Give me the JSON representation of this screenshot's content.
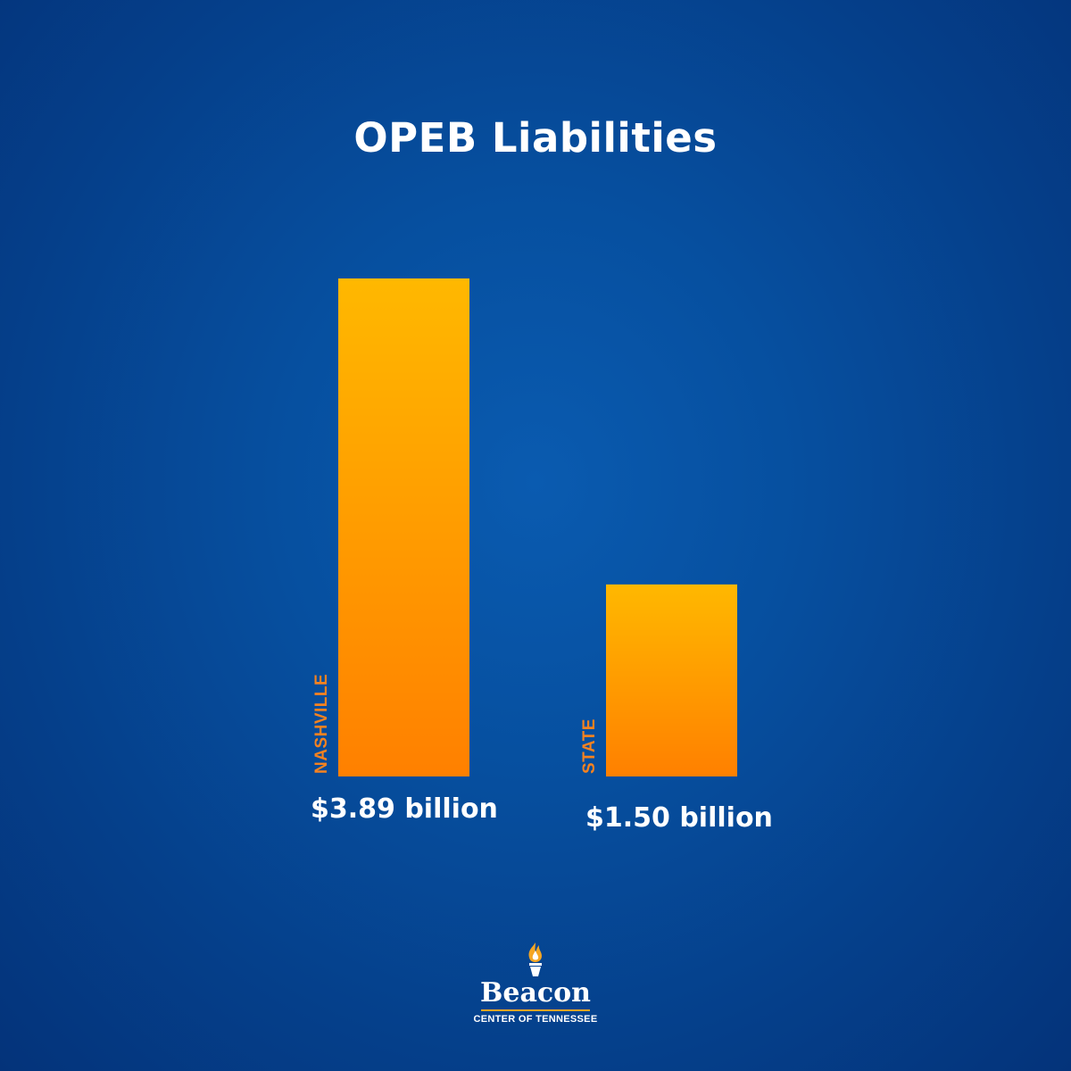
{
  "chart_data": {
    "type": "bar",
    "title": "OPEB Liabilities",
    "categories": [
      "NASHVILLE",
      "STATE"
    ],
    "values": [
      3.89,
      1.5
    ],
    "value_labels": [
      "$3.89 billion",
      "$1.50 billion"
    ],
    "unit": "billion USD",
    "ylim": [
      0,
      3.89
    ],
    "grid": false,
    "legend": "none"
  },
  "colors": {
    "background": "#064f9f",
    "bar_top": "#ffb800",
    "bar_bottom": "#ff8000",
    "category_label": "#f58220",
    "text": "#ffffff",
    "logo_accent": "#f5a623"
  },
  "logo": {
    "icon": "torch-icon",
    "name": "Beacon",
    "subtitle": "CENTER OF TENNESSEE"
  }
}
